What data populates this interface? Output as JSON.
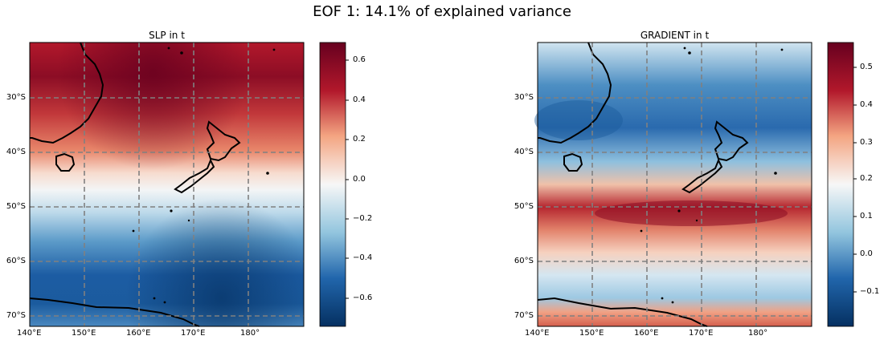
{
  "figure": {
    "suptitle": "EOF 1: 14.1% of explained variance"
  },
  "colors": {
    "cmap": "RdBu_r",
    "dark_red": "#67001f",
    "red": "#b2182b",
    "light_red": "#f4a582",
    "white": "#f7f7f7",
    "light_blue": "#92c5de",
    "blue": "#2166ac",
    "dark_blue": "#053061",
    "gridline": "#808080",
    "coastline": "#000000"
  },
  "maps": [
    {
      "title": "SLP in t",
      "lon_range": [
        140,
        190
      ],
      "lat_range": [
        -71,
        -21
      ],
      "lon_ticks": [
        "140°E",
        "150°E",
        "160°E",
        "170°E",
        "180°"
      ],
      "lat_ticks": [
        "30°S",
        "40°S",
        "50°S",
        "60°S",
        "70°S"
      ],
      "colorbar": {
        "range": [
          -0.75,
          0.68
        ],
        "tick_labels": [
          "0.6",
          "0.4",
          "0.2",
          "0.0",
          "−0.2",
          "−0.4",
          "−0.6"
        ],
        "tick_values": [
          0.6,
          0.4,
          0.2,
          0.0,
          -0.2,
          -0.4,
          -0.6
        ]
      }
    },
    {
      "title": "GRADIENT in t",
      "lon_range": [
        140,
        190
      ],
      "lat_range": [
        -71,
        -21
      ],
      "lon_ticks": [
        "140°E",
        "150°E",
        "160°E",
        "170°E",
        "180°"
      ],
      "lat_ticks": [
        "30°S",
        "40°S",
        "50°S",
        "60°S",
        "70°S"
      ],
      "colorbar": {
        "range": [
          -0.2,
          0.57
        ],
        "tick_labels": [
          "0.5",
          "0.4",
          "0.3",
          "0.2",
          "0.1",
          "0.0",
          "−0.1"
        ],
        "tick_values": [
          0.5,
          0.4,
          0.3,
          0.2,
          0.1,
          0.0,
          -0.1
        ]
      }
    }
  ]
}
